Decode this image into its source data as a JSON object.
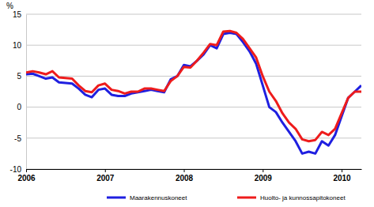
{
  "chart_data": {
    "type": "line",
    "y_label": "%",
    "categories": [
      "2006",
      null,
      null,
      null,
      null,
      null,
      null,
      null,
      null,
      null,
      null,
      null,
      "2007",
      null,
      null,
      null,
      null,
      null,
      null,
      null,
      null,
      null,
      null,
      null,
      "2008",
      null,
      null,
      null,
      null,
      null,
      null,
      null,
      null,
      null,
      null,
      null,
      "2009",
      null,
      null,
      null,
      null,
      null,
      null,
      null,
      null,
      null,
      null,
      null,
      "2010",
      null,
      null,
      null
    ],
    "series": [
      {
        "name": "Maarakennuskoneet",
        "color": "#1f1fe0",
        "values": [
          5.3,
          5.4,
          5.0,
          4.6,
          4.8,
          4.0,
          3.9,
          3.8,
          3.0,
          2.0,
          1.6,
          2.8,
          3.0,
          2.0,
          1.8,
          1.8,
          2.2,
          2.4,
          2.6,
          2.8,
          2.6,
          2.4,
          4.5,
          5.0,
          6.8,
          6.6,
          7.5,
          8.5,
          10.0,
          9.5,
          11.8,
          12.0,
          11.8,
          10.5,
          9.0,
          7.0,
          3.5,
          0.0,
          -0.8,
          -2.5,
          -4.0,
          -5.5,
          -7.5,
          -7.2,
          -7.5,
          -5.5,
          -6.2,
          -4.5,
          -1.5,
          1.5,
          2.5,
          3.5
        ]
      },
      {
        "name": "Huolto- ja kunnossapitokoneet",
        "color": "#ee1c1c",
        "values": [
          5.6,
          5.8,
          5.6,
          5.3,
          5.8,
          4.8,
          4.7,
          4.6,
          3.5,
          2.6,
          2.4,
          3.5,
          3.8,
          2.8,
          2.6,
          2.2,
          2.5,
          2.5,
          3.0,
          3.0,
          2.8,
          2.6,
          4.2,
          5.0,
          6.5,
          6.4,
          7.5,
          8.8,
          10.2,
          10.0,
          12.2,
          12.3,
          12.0,
          11.0,
          9.5,
          8.0,
          5.0,
          2.5,
          1.0,
          -1.0,
          -2.5,
          -3.5,
          -5.2,
          -5.5,
          -5.3,
          -4.0,
          -4.5,
          -3.5,
          -1.0,
          1.5,
          2.5,
          2.5
        ]
      }
    ],
    "ylim": [
      -10,
      15
    ],
    "yticks": [
      -10,
      -5,
      0,
      5,
      10,
      15
    ],
    "grid": true,
    "legend": "bottom"
  }
}
